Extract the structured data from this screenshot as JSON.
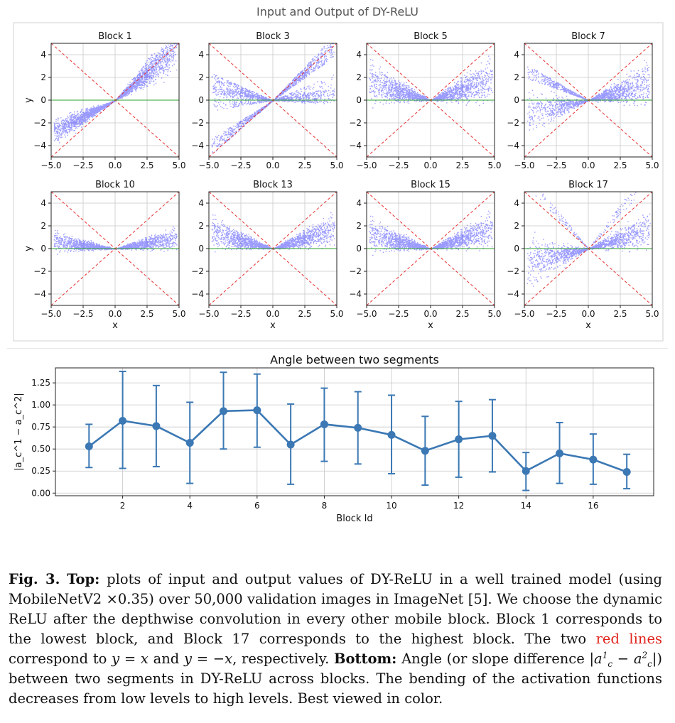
{
  "top_figure": {
    "title": "Input and Output of DY-ReLU"
  },
  "chart_data": [
    {
      "type": "scatter",
      "title": "Input and Output of DY-ReLU",
      "panels": [
        {
          "title": "Block 1",
          "kind": "b1"
        },
        {
          "title": "Block 3",
          "kind": "b3"
        },
        {
          "title": "Block 5",
          "kind": "b5"
        },
        {
          "title": "Block 7",
          "kind": "b7"
        },
        {
          "title": "Block 10",
          "kind": "b10"
        },
        {
          "title": "Block 13",
          "kind": "b13"
        },
        {
          "title": "Block 15",
          "kind": "b15"
        },
        {
          "title": "Block 17",
          "kind": "b17"
        }
      ],
      "xlabel": "x",
      "ylabel": "y",
      "xlim": [
        -5,
        5
      ],
      "ylim": [
        -5,
        5
      ],
      "xticks": [
        "−5.0",
        "−2.5",
        "0.0",
        "2.5",
        "5.0"
      ],
      "yticks": [
        "4",
        "2",
        "0",
        "−2",
        "−4"
      ],
      "reference_lines": [
        "y = x",
        "y = −x",
        "y = 0"
      ],
      "grid": true
    },
    {
      "type": "line",
      "title": "Angle between two segments",
      "xlabel": "Block Id",
      "ylabel": "|a_c^1 − a_c^2|",
      "x": [
        1,
        2,
        3,
        4,
        5,
        6,
        7,
        8,
        9,
        10,
        11,
        12,
        13,
        14,
        15,
        16,
        17
      ],
      "values": [
        0.53,
        0.82,
        0.76,
        0.57,
        0.93,
        0.94,
        0.55,
        0.78,
        0.74,
        0.66,
        0.48,
        0.61,
        0.65,
        0.25,
        0.45,
        0.38,
        0.24
      ],
      "err_upper": [
        0.78,
        1.38,
        1.22,
        1.03,
        1.37,
        1.35,
        1.01,
        1.19,
        1.15,
        1.11,
        0.87,
        1.04,
        1.06,
        0.46,
        0.8,
        0.67,
        0.44
      ],
      "err_lower": [
        0.29,
        0.28,
        0.3,
        0.11,
        0.5,
        0.52,
        0.1,
        0.36,
        0.33,
        0.22,
        0.09,
        0.18,
        0.24,
        0.03,
        0.11,
        0.1,
        0.05
      ],
      "xticks": [
        2,
        4,
        6,
        8,
        10,
        12,
        14,
        16
      ],
      "xlim": [
        0,
        17.8
      ],
      "ylim": [
        -0.03,
        1.42
      ],
      "yticks": [
        "0.00",
        "0.25",
        "0.50",
        "0.75",
        "1.00",
        "1.25"
      ],
      "grid": true,
      "color": "#3b78b4"
    }
  ],
  "caption": {
    "label": "Fig. 3.",
    "top_label": "Top:",
    "text1": " plots of input and output values of DY-ReLU in a well trained model (using MobileNetV2 ×0.35) over 50,000 validation images in ImageNet [5]. We choose the dynamic ReLU after the depthwise convolution in every other mobile block. Block 1 corresponds to the lowest block, and Block 17 corresponds to the highest block. The two ",
    "red_text": "red lines",
    "text2": " correspond to ",
    "eq1": "y = x",
    "and": " and ",
    "eq2": "y = −x",
    "text3": ", respectively. ",
    "bottom_label": "Bottom:",
    "text4": " Angle (or slope difference |",
    "text5": "|) between two segments in DY-ReLU across blocks. The bending of the activation functions decreases from low levels to high levels. Best viewed in color."
  },
  "colors": {
    "scatter": "#1f1fff",
    "ref_red": "#e53030",
    "zero_green": "#2ca02c",
    "line_blue": "#3b78b4"
  }
}
